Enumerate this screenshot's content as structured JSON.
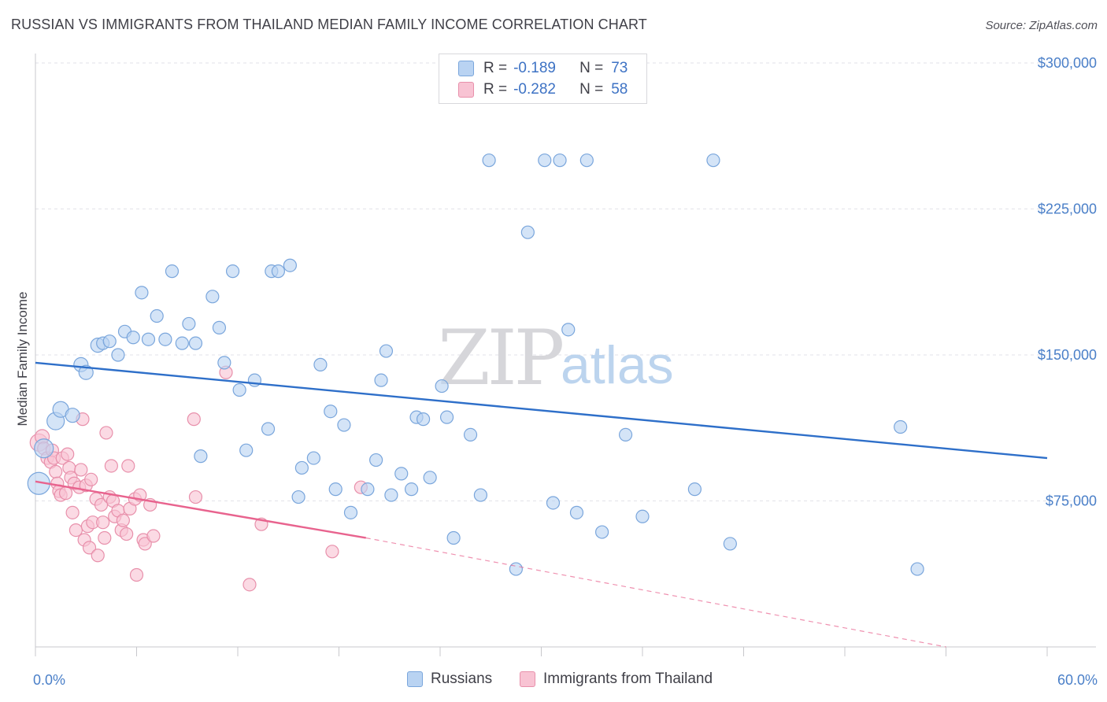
{
  "title": "RUSSIAN VS IMMIGRANTS FROM THAILAND MEDIAN FAMILY INCOME CORRELATION CHART",
  "source": "Source: ZipAtlas.com",
  "watermark": {
    "zip": "ZIP",
    "atlas": "atlas"
  },
  "legend": {
    "rows": [
      {
        "r_label": "R =",
        "r_value": "-0.189",
        "n_label": "N =",
        "n_value": "73"
      },
      {
        "r_label": "R =",
        "r_value": "-0.282",
        "n_label": "N =",
        "n_value": "58"
      }
    ]
  },
  "bottom_legend": [
    "Russians",
    "Immigrants from Thailand"
  ],
  "colors": {
    "blue_fill": "#b9d3f2",
    "blue_stroke": "#7aa6dc",
    "blue_line": "#2e6fc9",
    "pink_fill": "#f8c3d3",
    "pink_stroke": "#e890ab",
    "pink_line": "#e8638e",
    "axis_text": "#4a7fc8",
    "grid": "#e2e2e8"
  },
  "chart_data": {
    "type": "scatter",
    "title": "RUSSIAN VS IMMIGRANTS FROM THAILAND MEDIAN FAMILY INCOME CORRELATION CHART",
    "xlabel": "",
    "ylabel": "Median Family Income",
    "xlim": [
      0,
      60
    ],
    "ylim": [
      0,
      315000
    ],
    "x_tick_labels": [
      "0.0%",
      "60.0%"
    ],
    "y_ticks": [
      75000,
      150000,
      225000,
      300000
    ],
    "y_tick_labels": [
      "$75,000",
      "$150,000",
      "$225,000",
      "$300,000"
    ],
    "series": [
      {
        "name": "Russians",
        "r": -0.189,
        "n": 73,
        "trend": {
          "x": [
            0,
            60
          ],
          "y": [
            146000,
            97000
          ],
          "dashed_to": null
        },
        "points": [
          [
            0.2,
            84000,
            14
          ],
          [
            0.5,
            102000,
            12
          ],
          [
            1.2,
            116000,
            11
          ],
          [
            1.5,
            122000,
            10
          ],
          [
            2.2,
            119000,
            9
          ],
          [
            2.7,
            145000,
            9
          ],
          [
            3.0,
            141000,
            9
          ],
          [
            3.7,
            155000,
            9
          ],
          [
            4.0,
            156000,
            8
          ],
          [
            4.4,
            157000,
            8
          ],
          [
            4.9,
            150000,
            8
          ],
          [
            5.3,
            162000,
            8
          ],
          [
            5.8,
            159000,
            8
          ],
          [
            6.3,
            182000,
            8
          ],
          [
            6.7,
            158000,
            8
          ],
          [
            7.2,
            170000,
            8
          ],
          [
            7.7,
            158000,
            8
          ],
          [
            8.1,
            193000,
            8
          ],
          [
            8.7,
            156000,
            8
          ],
          [
            9.1,
            166000,
            8
          ],
          [
            9.5,
            156000,
            8
          ],
          [
            9.8,
            98000,
            8
          ],
          [
            10.5,
            180000,
            8
          ],
          [
            10.9,
            164000,
            8
          ],
          [
            11.2,
            146000,
            8
          ],
          [
            11.7,
            193000,
            8
          ],
          [
            12.1,
            132000,
            8
          ],
          [
            12.5,
            101000,
            8
          ],
          [
            13.0,
            137000,
            8
          ],
          [
            13.8,
            112000,
            8
          ],
          [
            14.0,
            193000,
            8
          ],
          [
            14.4,
            193000,
            8
          ],
          [
            15.1,
            196000,
            8
          ],
          [
            15.6,
            77000,
            8
          ],
          [
            15.8,
            92000,
            8
          ],
          [
            16.5,
            97000,
            8
          ],
          [
            16.9,
            145000,
            8
          ],
          [
            17.5,
            121000,
            8
          ],
          [
            17.8,
            81000,
            8
          ],
          [
            18.3,
            114000,
            8
          ],
          [
            18.7,
            69000,
            8
          ],
          [
            19.7,
            81000,
            8
          ],
          [
            20.2,
            96000,
            8
          ],
          [
            20.5,
            137000,
            8
          ],
          [
            20.8,
            152000,
            8
          ],
          [
            21.1,
            78000,
            8
          ],
          [
            21.7,
            89000,
            8
          ],
          [
            22.3,
            81000,
            8
          ],
          [
            22.6,
            118000,
            8
          ],
          [
            23.0,
            117000,
            8
          ],
          [
            23.4,
            87000,
            8
          ],
          [
            24.1,
            134000,
            8
          ],
          [
            24.4,
            118000,
            8
          ],
          [
            24.8,
            56000,
            8
          ],
          [
            25.8,
            109000,
            8
          ],
          [
            26.4,
            78000,
            8
          ],
          [
            26.9,
            250000,
            8
          ],
          [
            28.5,
            40000,
            8
          ],
          [
            29.2,
            213000,
            8
          ],
          [
            30.2,
            250000,
            8
          ],
          [
            30.7,
            74000,
            8
          ],
          [
            31.1,
            250000,
            8
          ],
          [
            31.6,
            163000,
            8
          ],
          [
            32.1,
            69000,
            8
          ],
          [
            32.7,
            250000,
            8
          ],
          [
            33.6,
            59000,
            8
          ],
          [
            35.0,
            109000,
            8
          ],
          [
            36.0,
            67000,
            8
          ],
          [
            39.1,
            81000,
            8
          ],
          [
            40.2,
            250000,
            8
          ],
          [
            41.2,
            53000,
            8
          ],
          [
            51.3,
            113000,
            8
          ],
          [
            52.3,
            40000,
            8
          ]
        ]
      },
      {
        "name": "Immigrants from Thailand",
        "r": -0.282,
        "n": 58,
        "trend": {
          "x": [
            0,
            19.6
          ],
          "y": [
            85000,
            56000
          ],
          "dashed_to": [
            54,
            0
          ]
        },
        "points": [
          [
            0.2,
            105000,
            11
          ],
          [
            0.4,
            108000,
            9
          ],
          [
            0.5,
            102000,
            8
          ],
          [
            0.7,
            97000,
            8
          ],
          [
            0.9,
            95000,
            8
          ],
          [
            1.0,
            101000,
            8
          ],
          [
            1.1,
            97000,
            8
          ],
          [
            1.2,
            90000,
            8
          ],
          [
            1.3,
            84000,
            8
          ],
          [
            1.4,
            80000,
            8
          ],
          [
            1.5,
            78000,
            8
          ],
          [
            1.6,
            97000,
            8
          ],
          [
            1.8,
            79000,
            8
          ],
          [
            1.9,
            99000,
            8
          ],
          [
            2.0,
            92000,
            8
          ],
          [
            2.1,
            87000,
            8
          ],
          [
            2.2,
            69000,
            8
          ],
          [
            2.3,
            84000,
            8
          ],
          [
            2.4,
            60000,
            8
          ],
          [
            2.6,
            82000,
            8
          ],
          [
            2.7,
            91000,
            8
          ],
          [
            2.8,
            117000,
            8
          ],
          [
            2.9,
            55000,
            8
          ],
          [
            3.0,
            83000,
            8
          ],
          [
            3.1,
            62000,
            8
          ],
          [
            3.2,
            51000,
            8
          ],
          [
            3.3,
            86000,
            8
          ],
          [
            3.4,
            64000,
            8
          ],
          [
            3.6,
            76000,
            8
          ],
          [
            3.7,
            47000,
            8
          ],
          [
            3.9,
            73000,
            8
          ],
          [
            4.0,
            64000,
            8
          ],
          [
            4.1,
            56000,
            8
          ],
          [
            4.2,
            110000,
            8
          ],
          [
            4.4,
            77000,
            8
          ],
          [
            4.5,
            93000,
            8
          ],
          [
            4.6,
            75000,
            8
          ],
          [
            4.7,
            67000,
            8
          ],
          [
            4.9,
            70000,
            8
          ],
          [
            5.1,
            60000,
            8
          ],
          [
            5.2,
            65000,
            8
          ],
          [
            5.4,
            58000,
            8
          ],
          [
            5.5,
            93000,
            8
          ],
          [
            5.6,
            71000,
            8
          ],
          [
            5.9,
            76000,
            8
          ],
          [
            6.0,
            37000,
            8
          ],
          [
            6.2,
            78000,
            8
          ],
          [
            6.4,
            55000,
            8
          ],
          [
            6.5,
            53000,
            8
          ],
          [
            6.8,
            73000,
            8
          ],
          [
            9.4,
            117000,
            8
          ],
          [
            9.5,
            77000,
            8
          ],
          [
            11.3,
            141000,
            8
          ],
          [
            12.7,
            32000,
            8
          ],
          [
            13.4,
            63000,
            8
          ],
          [
            17.6,
            49000,
            8
          ],
          [
            19.3,
            82000,
            8
          ],
          [
            7.0,
            57000,
            8
          ]
        ]
      }
    ]
  }
}
